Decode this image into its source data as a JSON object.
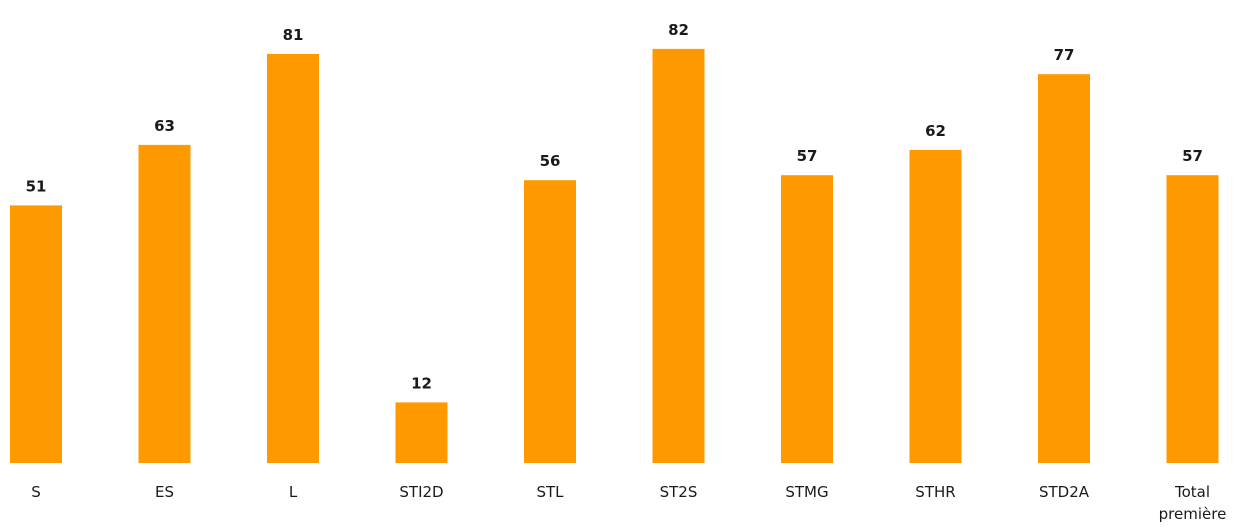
{
  "colors": {
    "bar": "#FF9900",
    "text": "#1a1a1a"
  },
  "chart_data": {
    "type": "bar",
    "title": "",
    "xlabel": "",
    "ylabel": "",
    "categories": [
      "S",
      "ES",
      "L",
      "STI2D",
      "STL",
      "ST2S",
      "STMG",
      "STHR",
      "STD2A",
      "Total première"
    ],
    "values": [
      51,
      63,
      81,
      12,
      56,
      82,
      57,
      62,
      77,
      57
    ],
    "ylim": [
      0,
      100
    ],
    "grid": false,
    "legend": "none",
    "data_labels": true
  }
}
